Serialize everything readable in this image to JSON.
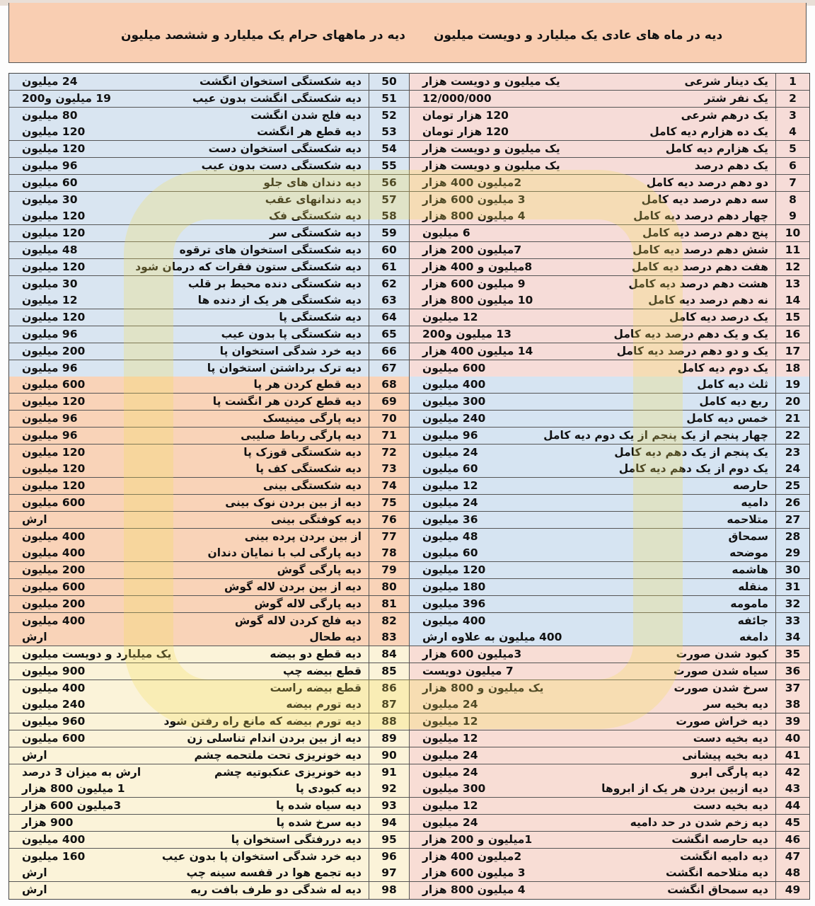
{
  "header": {
    "title_normal_months": "دیه در ماه های عادی یک میلیارد و دویست میلیون",
    "title_haram_months": "دیه در ماههای حرام یک میلیارد و ششصد میلیون"
  },
  "colors": {
    "header_bg": "#f9ceb2",
    "right_1_18": "#f6dcd8",
    "right_19_34": "#d6e4f2",
    "right_35_49": "#f8ddd5",
    "left_50_67": "#d9e5f1",
    "left_68_83": "#f9d3b8",
    "left_84_98": "#fbf3d9"
  },
  "right_rows": [
    {
      "n": "1",
      "desc": "یک دینار شرعی",
      "val": "یک میلیون و دویست هزار"
    },
    {
      "n": "2",
      "desc": "یک نفر شتر",
      "val": "12/000/000"
    },
    {
      "n": "3",
      "desc": "یک درهم شرعی",
      "val": "120 هزار تومان"
    },
    {
      "n": "4",
      "desc": "یک ده هزارم دیه کامل",
      "val": "120 هزار تومان"
    },
    {
      "n": "5",
      "desc": "یک هزارم دیه کامل",
      "val": "یک میلیون و دویست هزار"
    },
    {
      "n": "6",
      "desc": "یک دهم درصد",
      "val": "یک میلیون و دویست هزار"
    },
    {
      "n": "7",
      "desc": "دو دهم درصد دیه کامل",
      "val": "2میلیون 400 هزار"
    },
    {
      "n": "8",
      "desc": "سه دهم درصد دیه کامل",
      "val": "3 میلیون 600 هزار"
    },
    {
      "n": "9",
      "desc": "چهار دهم درصد دیه کامل",
      "val": "4 میلیون 800 هزار"
    },
    {
      "n": "10",
      "desc": "پنج دهم درصد دیه کامل",
      "val": "6 میلیون"
    },
    {
      "n": "11",
      "desc": "شش دهم درصد دیه کامل",
      "val": "7میلیون 200 هزار"
    },
    {
      "n": "12",
      "desc": "هفت دهم درصد دیه کامل",
      "val": "8میلیون و 400 هزار"
    },
    {
      "n": "13",
      "desc": "هشت دهم درصد دیه کامل",
      "val": "9 میلیون 600 هزار"
    },
    {
      "n": "14",
      "desc": "نه دهم درصد دیه کامل",
      "val": "10 میلیون 800 هزار"
    },
    {
      "n": "15",
      "desc": "یک درصد دیه کامل",
      "val": "12 میلیون"
    },
    {
      "n": "16",
      "desc": "یک و یک دهم درصد دیه کامل",
      "val": "13 میلیون و200"
    },
    {
      "n": "17",
      "desc": "یک و دو دهم درصد دیه کامل",
      "val": "14 میلیون 400 هزار"
    },
    {
      "n": "18",
      "desc": "یک دوم دیه کامل",
      "val": "600 میلیون"
    },
    {
      "n": "19",
      "desc": "ثلث دیه کامل",
      "val": "400 میلیون"
    },
    {
      "n": "20",
      "desc": "ربع دیه کامل",
      "val": "300 میلیون"
    },
    {
      "n": "21",
      "desc": "خمس دیه کامل",
      "val": "240 میلیون"
    },
    {
      "n": "22",
      "desc": "چهار پنجم از یک پنجم از یک دوم دیه کامل",
      "val": "96 میلیون"
    },
    {
      "n": "23",
      "desc": "یک پنجم از یک دهم دیه کامل",
      "val": "24 میلیون"
    },
    {
      "n": "24",
      "desc": "یک دوم از یک دهم دیه کامل",
      "val": "60 میلیون"
    },
    {
      "n": "25",
      "desc": "حارصه",
      "val": "12 میلیون"
    },
    {
      "n": "26",
      "desc": "دامیه",
      "val": "24 میلیون"
    },
    {
      "n": "27",
      "desc": "متلاحمه",
      "val": "36 میلیون"
    },
    {
      "n": "28",
      "desc": "سمحاق",
      "val": "48 میلیون"
    },
    {
      "n": "29",
      "desc": "موضحه",
      "val": "60 میلیون"
    },
    {
      "n": "30",
      "desc": "هاشمه",
      "val": "120 میلیون"
    },
    {
      "n": "31",
      "desc": "منقله",
      "val": "180 میلیون"
    },
    {
      "n": "32",
      "desc": "مامومه",
      "val": "396 میلیون"
    },
    {
      "n": "33",
      "desc": "جائفه",
      "val": "400 میلیون"
    },
    {
      "n": "34",
      "desc": "دامغه",
      "val": "400 میلیون به علاوه ارش"
    },
    {
      "n": "35",
      "desc": "کبود شدن صورت",
      "val": "3میلیون 600 هزار"
    },
    {
      "n": "36",
      "desc": "سیاه شدن صورت",
      "val": "7 میلیون دویست"
    },
    {
      "n": "37",
      "desc": "سرخ شدن صورت",
      "val": "یک میلیون و 800 هزار"
    },
    {
      "n": "38",
      "desc": "دیه بخیه سر",
      "val": "24 میلیون"
    },
    {
      "n": "39",
      "desc": "دیه خراش صورت",
      "val": "12 میلیون"
    },
    {
      "n": "40",
      "desc": "دیه بخیه دست",
      "val": "12 میلیون"
    },
    {
      "n": "41",
      "desc": "دیه بخیه پیشانی",
      "val": "24 میلیون"
    },
    {
      "n": "42",
      "desc": "دیه پارگی ابرو",
      "val": "24 میلیون"
    },
    {
      "n": "43",
      "desc": "دیه ازبین بردن هر یک از ابروها",
      "val": "300 میلیون"
    },
    {
      "n": "44",
      "desc": "دیه بخیه دست",
      "val": "12 میلیون"
    },
    {
      "n": "45",
      "desc": "دیه زخم شدن در حد دامیه",
      "val": "24 میلیون"
    },
    {
      "n": "46",
      "desc": "دیه حارصه انگشت",
      "val": "1میلیون و 200 هزار"
    },
    {
      "n": "47",
      "desc": "دیه دامیه انگشت",
      "val": "2میلیون 400 هزار"
    },
    {
      "n": "48",
      "desc": "دیه متلاحمه انگشت",
      "val": "3 میلیون 600 هزار"
    },
    {
      "n": "49",
      "desc": "دیه سمحاق انگشت",
      "val": "4 میلیون 800 هزار"
    }
  ],
  "left_rows": [
    {
      "n": "50",
      "desc": "دیه شکستگی استخوان انگشت",
      "val": "24 میلیون"
    },
    {
      "n": "51",
      "desc": "دیه شکستگی انگشت بدون عیب",
      "val": "19 میلیون و200"
    },
    {
      "n": "52",
      "desc": "دیه فلج شدن انگشت",
      "val": "80 میلیون"
    },
    {
      "n": "53",
      "desc": "دیه قطع هر انگشت",
      "val": "120 میلیون"
    },
    {
      "n": "54",
      "desc": "دیه شکستگی استخوان دست",
      "val": "120 میلیون"
    },
    {
      "n": "55",
      "desc": "دیه شکستگی دست بدون عیب",
      "val": "96 میلیون"
    },
    {
      "n": "56",
      "desc": "دیه دندان های جلو",
      "val": "60 میلیون"
    },
    {
      "n": "57",
      "desc": "دیه دندانهای عقب",
      "val": "30 میلیون"
    },
    {
      "n": "58",
      "desc": "دیه شکستگی فک",
      "val": "120 میلیون"
    },
    {
      "n": "59",
      "desc": "دیه شکستگی سر",
      "val": "120 میلیون"
    },
    {
      "n": "60",
      "desc": "دیه شکستگی استخوان های ترقوه",
      "val": "48 میلیون"
    },
    {
      "n": "61",
      "desc": "دیه شکستگی ستون فقرات که درمان شود",
      "val": "120 میلیون"
    },
    {
      "n": "62",
      "desc": "دیه شکستگی دنده محیط بر قلب",
      "val": "30 میلیون"
    },
    {
      "n": "63",
      "desc": "دیه شکستگی هر یک از دنده ها",
      "val": "12 میلیون"
    },
    {
      "n": "64",
      "desc": "دیه شکستگی پا",
      "val": "120 میلیون"
    },
    {
      "n": "65",
      "desc": "دیه شکستگی پا بدون عیب",
      "val": "96 میلیون"
    },
    {
      "n": "66",
      "desc": "دیه خرد شدگی استخوان پا",
      "val": "200 میلیون"
    },
    {
      "n": "67",
      "desc": "دیه ترک برداشتن استخوان پا",
      "val": "96 میلیون"
    },
    {
      "n": "68",
      "desc": "دیه قطع کردن هر پا",
      "val": "600 میلیون"
    },
    {
      "n": "69",
      "desc": "دیه قطع کردن هر انگشت پا",
      "val": "120 میلیون"
    },
    {
      "n": "70",
      "desc": "دیه پارگی مینیسک",
      "val": "96 میلیون"
    },
    {
      "n": "71",
      "desc": "دیه پارگی رباط صلیبی",
      "val": "96 میلیون"
    },
    {
      "n": "72",
      "desc": "دیه شکستگی قوزک پا",
      "val": "120 میلیون"
    },
    {
      "n": "73",
      "desc": "دیه شکستگی کف پا",
      "val": "120 میلیون"
    },
    {
      "n": "74",
      "desc": "دیه شکستگی بینی",
      "val": "120 میلیون"
    },
    {
      "n": "75",
      "desc": "دیه از بین بردن نوک بینی",
      "val": "600 میلیون"
    },
    {
      "n": "76",
      "desc": "دیه کوفتگی بینی",
      "val": "ارش"
    },
    {
      "n": "77",
      "desc": "از بین بردن پرده بینی",
      "val": "400 میلیون"
    },
    {
      "n": "78",
      "desc": "دیه پارگی لب با نمایان دندان",
      "val": "400 میلیون"
    },
    {
      "n": "79",
      "desc": "دیه پارگی گوش",
      "val": "200 میلیون"
    },
    {
      "n": "80",
      "desc": "دیه از بین بردن لاله گوش",
      "val": "600 میلیون"
    },
    {
      "n": "81",
      "desc": "دیه پارگی لاله گوش",
      "val": "200 میلیون"
    },
    {
      "n": "82",
      "desc": "دیه فلج کردن لاله گوش",
      "val": "400 میلیون"
    },
    {
      "n": "83",
      "desc": "دیه طحال",
      "val": "ارش"
    },
    {
      "n": "84",
      "desc": "دیه قطع دو بیضه",
      "val": "یک میلیارد و دویست میلیون"
    },
    {
      "n": "85",
      "desc": "قطع بیضه چپ",
      "val": "900 میلیون"
    },
    {
      "n": "86",
      "desc": "قطع بیضه راست",
      "val": "400 میلیون"
    },
    {
      "n": "87",
      "desc": "دیه تورم بیضه",
      "val": "240 میلیون"
    },
    {
      "n": "88",
      "desc": "دیه تورم بیضه که مانع راه رفتن شود",
      "val": "960 میلیون"
    },
    {
      "n": "89",
      "desc": "دیه از بین بردن اندام تناسلی زن",
      "val": "600 میلیون"
    },
    {
      "n": "90",
      "desc": "دیه خونریزی تحت ملتحمه چشم",
      "val": "ارش"
    },
    {
      "n": "91",
      "desc": "دیه خونریزی عنکبوتیه چشم",
      "val": "ارش به میزان 3 درصد"
    },
    {
      "n": "92",
      "desc": "دیه کبودی پا",
      "val": "1 میلیون 800 هزار"
    },
    {
      "n": "93",
      "desc": "دیه سیاه شده پا",
      "val": "3میلیون 600 هزار"
    },
    {
      "n": "94",
      "desc": "دیه سرخ شده پا",
      "val": "900 هزار"
    },
    {
      "n": "95",
      "desc": "دیه دررفتگی استخوان پا",
      "val": "400 میلیون"
    },
    {
      "n": "96",
      "desc": "دیه خرد شدگی استخوان پا بدون عیب",
      "val": "160 میلیون"
    },
    {
      "n": "97",
      "desc": "دیه تجمع هوا در قفسه سینه چپ",
      "val": "ارش"
    },
    {
      "n": "98",
      "desc": "دیه له شدگی دو طرف بافت ریه",
      "val": "ارش"
    }
  ]
}
